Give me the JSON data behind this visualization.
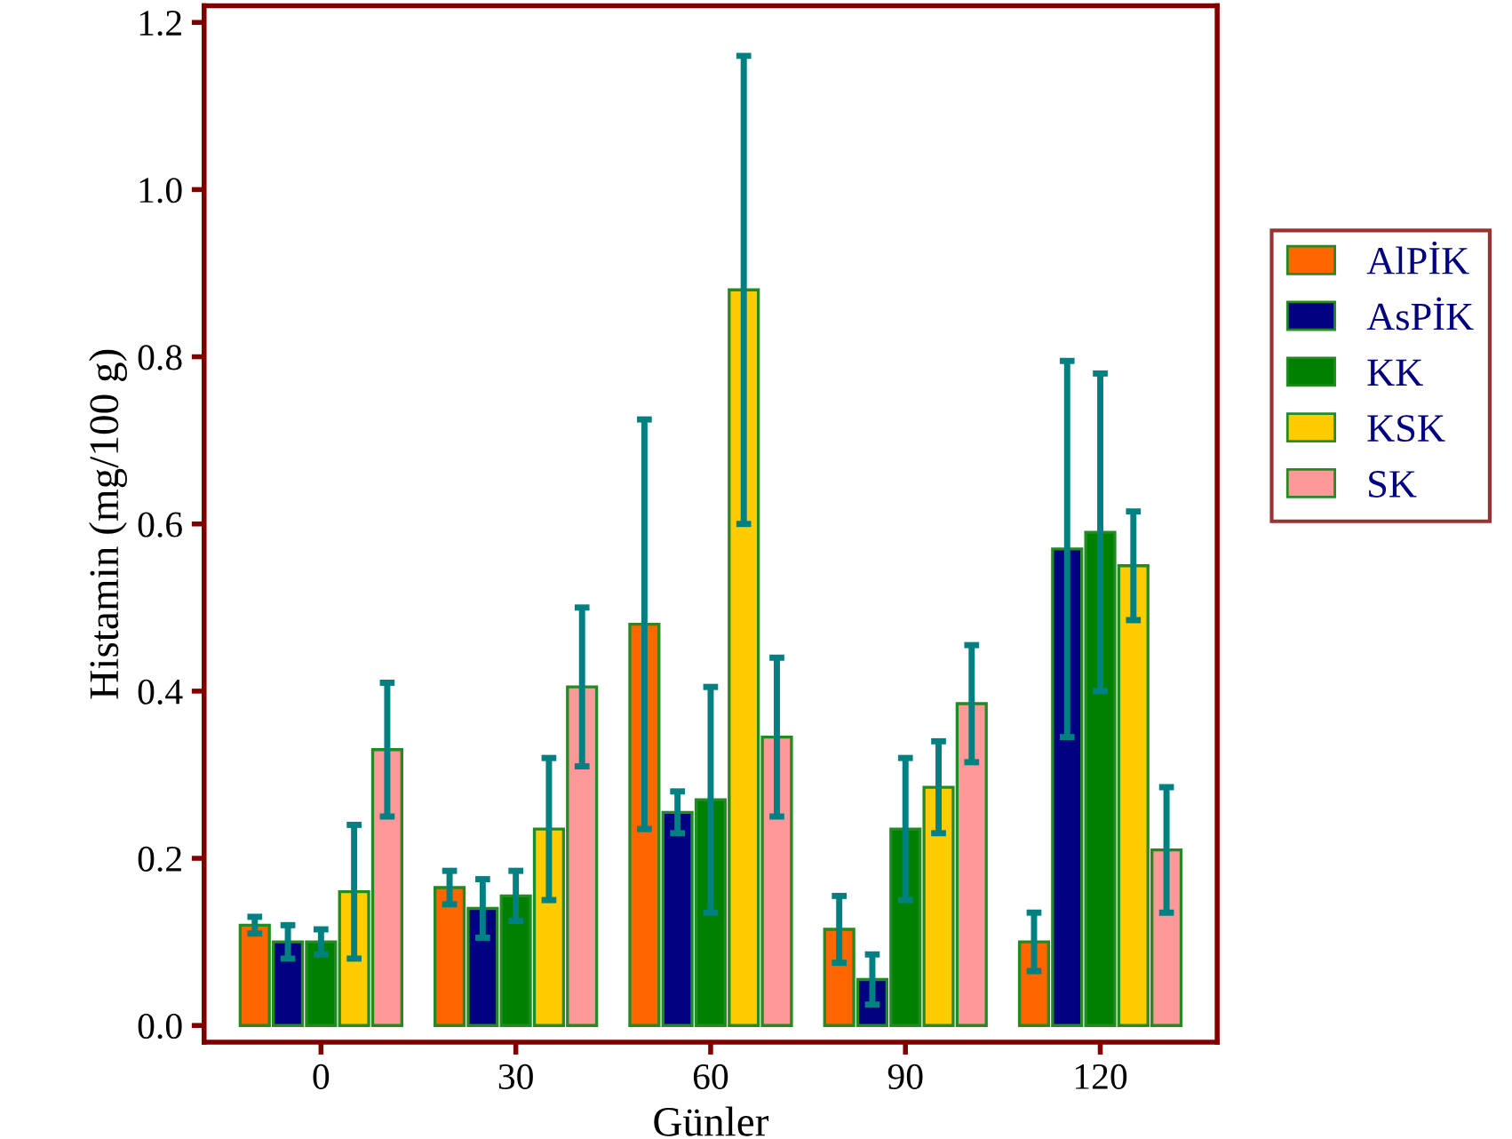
{
  "chart_data": {
    "type": "bar",
    "xlabel": "Günler",
    "ylabel": "Histamin (mg/100 g)",
    "categories": [
      "0",
      "30",
      "60",
      "90",
      "120"
    ],
    "ylim": [
      -0.02,
      1.22
    ],
    "yticks": [
      {
        "value": 0,
        "label": "0.0"
      },
      0.2,
      0.4,
      0.6,
      0.8,
      {
        "value": 1,
        "label": "1.0"
      },
      1.2
    ],
    "grid": false,
    "legend": "right",
    "series": [
      {
        "name": "AlPİK",
        "color": "#ff6600",
        "values": [
          0.12,
          0.165,
          0.48,
          0.115,
          0.1
        ],
        "errors": [
          0.01,
          0.02,
          0.245,
          0.04,
          0.035
        ]
      },
      {
        "name": "AsPİK",
        "color": "#000080",
        "values": [
          0.1,
          0.14,
          0.255,
          0.055,
          0.57
        ],
        "errors": [
          0.02,
          0.035,
          0.025,
          0.03,
          0.225
        ]
      },
      {
        "name": "KK",
        "color": "#008000",
        "values": [
          0.1,
          0.155,
          0.27,
          0.235,
          0.59
        ],
        "errors": [
          0.015,
          0.03,
          0.135,
          0.085,
          0.19
        ]
      },
      {
        "name": "KSK",
        "color": "#ffcc00",
        "values": [
          0.16,
          0.235,
          0.88,
          0.285,
          0.55
        ],
        "errors": [
          0.08,
          0.085,
          0.28,
          0.055,
          0.065
        ]
      },
      {
        "name": "SK",
        "color": "#ff9999",
        "values": [
          0.33,
          0.405,
          0.345,
          0.385,
          0.21
        ],
        "errors": [
          0.08,
          0.095,
          0.095,
          0.07,
          0.075
        ]
      }
    ]
  }
}
